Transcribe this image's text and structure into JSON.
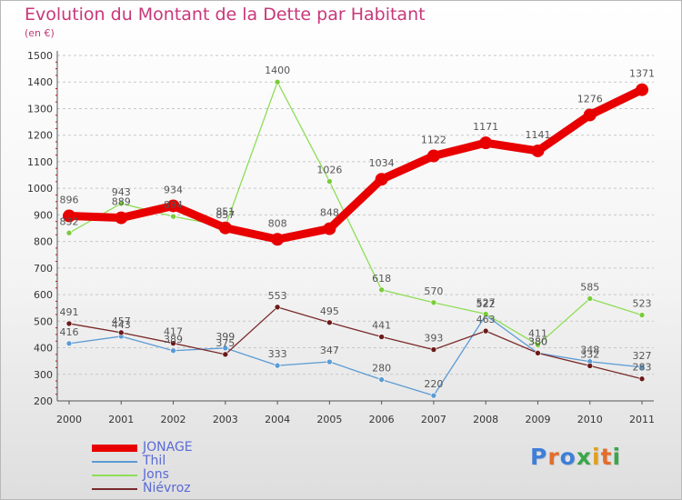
{
  "title": "Evolution du Montant de la Dette par Habitant",
  "unit_label": "(en €)",
  "logo": {
    "text": "Proxiti",
    "letter_colors": [
      "#3d7fd9",
      "#e46d2a",
      "#3d7fd9",
      "#3aa64b",
      "#e0a020",
      "#e46d2a",
      "#3aa64b"
    ]
  },
  "chart_data": {
    "type": "line",
    "title": "Evolution du Montant de la Dette par Habitant",
    "ylabel": "(en €)",
    "xlabel": "",
    "x": [
      "2000",
      "2001",
      "2002",
      "2003",
      "2004",
      "2005",
      "2006",
      "2007",
      "2008",
      "2009",
      "2010",
      "2011"
    ],
    "ylim": [
      200,
      1500
    ],
    "yticks": [
      200,
      300,
      400,
      500,
      600,
      700,
      800,
      900,
      1000,
      1100,
      1200,
      1300,
      1400,
      1500
    ],
    "grid": "horizontal dashed",
    "legend_position": "bottom-left",
    "series": [
      {
        "name": "JONAGE",
        "color": "#e80000",
        "emphasis": true,
        "values": [
          896,
          889,
          934,
          851,
          808,
          848,
          1034,
          1122,
          1171,
          1141,
          1276,
          1371
        ]
      },
      {
        "name": "Thil",
        "color": "#5b9bd5",
        "dot": "#5b9bd5",
        "values": [
          416,
          443,
          389,
          399,
          333,
          347,
          280,
          220,
          522,
          380,
          348,
          327
        ]
      },
      {
        "name": "Jons",
        "color": "#8ede57",
        "dot": "#7acc3a",
        "values": [
          832,
          943,
          894,
          857,
          1400,
          1026,
          618,
          570,
          527,
          411,
          585,
          523
        ]
      },
      {
        "name": "Niévroz",
        "color": "#7a2a2a",
        "dot": "#6a1a1a",
        "values": [
          491,
          457,
          417,
          375,
          553,
          495,
          441,
          393,
          463,
          380,
          332,
          283
        ]
      }
    ]
  }
}
